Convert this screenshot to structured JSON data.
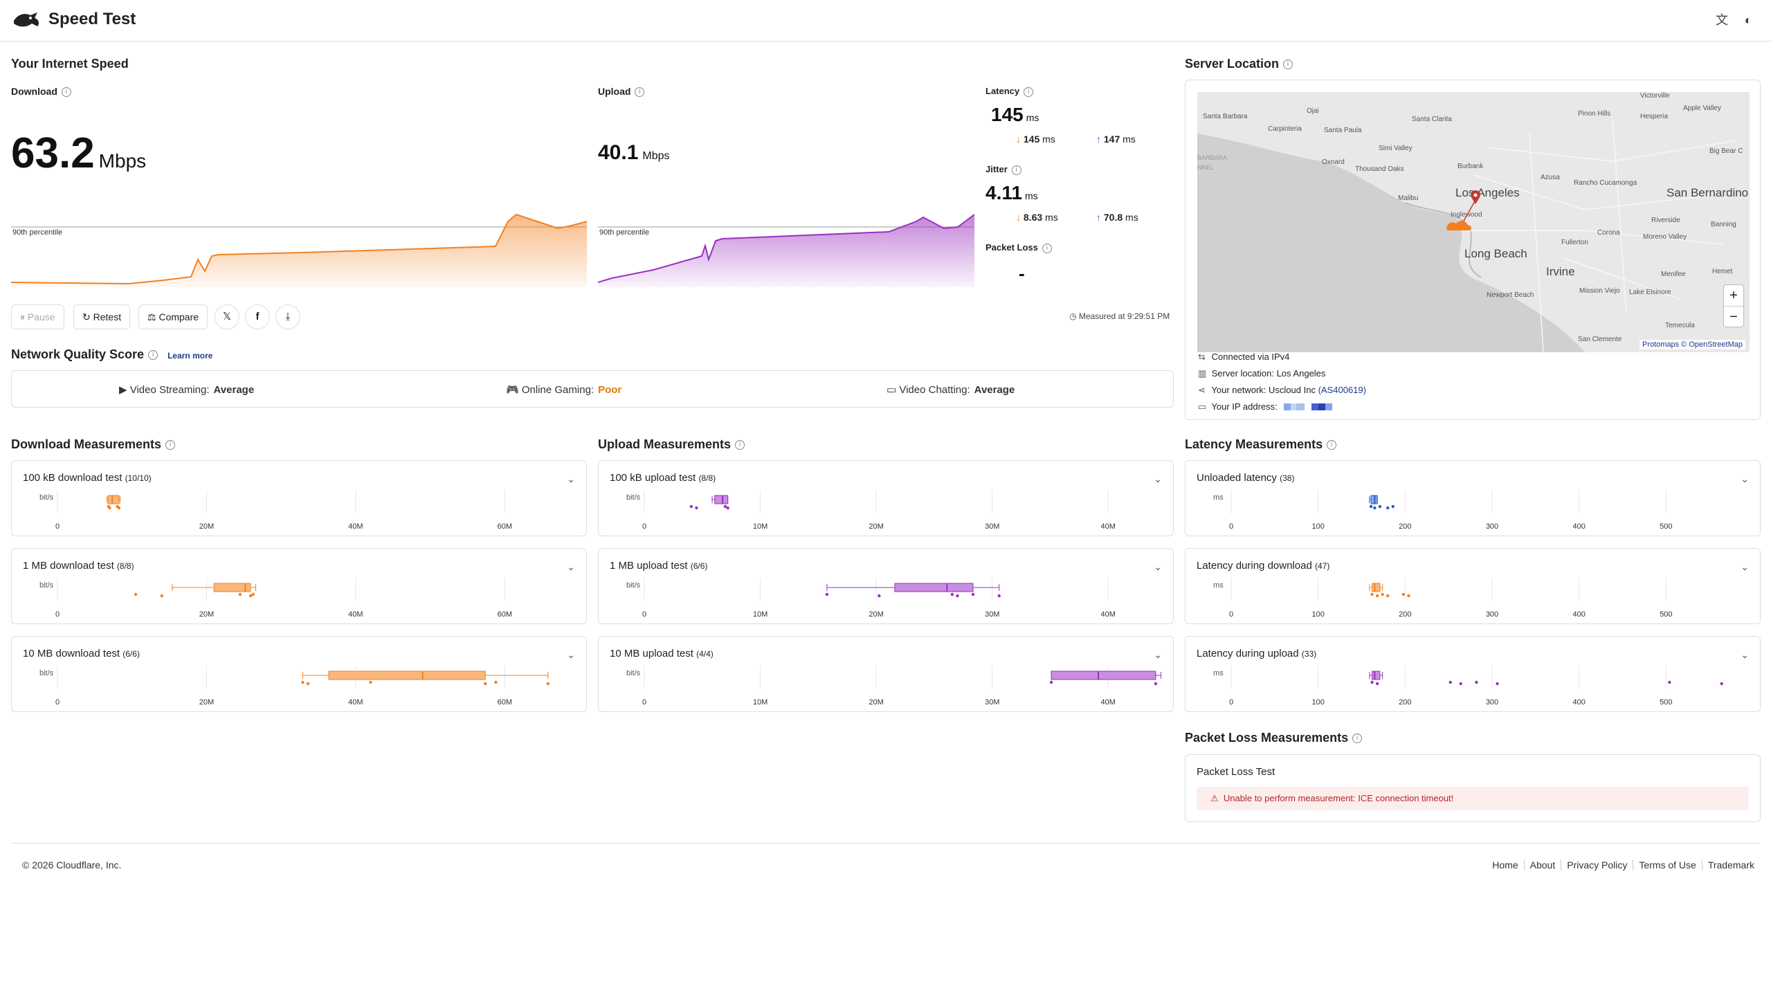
{
  "header": {
    "title": "Speed Test",
    "icons": [
      "translate-icon",
      "theme-icon"
    ]
  },
  "speed": {
    "section_title": "Your Internet Speed",
    "download": {
      "label": "Download",
      "value": "63.2",
      "unit": "Mbps",
      "percentile_label": "90th percentile"
    },
    "upload": {
      "label": "Upload",
      "value": "40.1",
      "unit": "Mbps",
      "percentile_label": "90th percentile"
    },
    "latency": {
      "label": "Latency",
      "value": "145",
      "unit": "ms",
      "down": "145",
      "down_unit": "ms",
      "up": "147",
      "up_unit": "ms"
    },
    "jitter": {
      "label": "Jitter",
      "value": "4.11",
      "unit": "ms",
      "down": "8.63",
      "down_unit": "ms",
      "up": "70.8",
      "up_unit": "ms"
    },
    "packet_loss": {
      "label": "Packet Loss",
      "value": "-"
    }
  },
  "actions": {
    "pause": "Pause",
    "retest": "Retest",
    "compare": "Compare",
    "measured": "Measured at 9:29:51 PM"
  },
  "quality": {
    "title": "Network Quality Score",
    "learn_more": "Learn more",
    "streaming_label": "Video Streaming:",
    "streaming_value": "Average",
    "gaming_label": "Online Gaming:",
    "gaming_value": "Poor",
    "chatting_label": "Video Chatting:",
    "chatting_value": "Average"
  },
  "location": {
    "title": "Server Location",
    "connected_label": "Connected via",
    "connected_value": "IPv4",
    "server_label": "Server location:",
    "server_value": "Los Angeles",
    "network_label": "Your network:",
    "network_value": "Uscloud Inc",
    "network_asn": "(AS400619)",
    "ip_label": "Your IP address:",
    "map_attr": "Protomaps © OpenStreetMap",
    "places": [
      "Santa Barbara",
      "Ojai",
      "Carpinteria",
      "Santa Clarita",
      "Santa Paula",
      "Simi Valley",
      "Oxnard",
      "Thousand Oaks",
      "Burbank",
      "Malibu",
      "Los Angeles",
      "Inglewood",
      "Long Beach",
      "Irvine",
      "Fullerton",
      "Corona",
      "Riverside",
      "Moreno Valley",
      "Azusa",
      "Rancho Cucamonga",
      "San Bernardino",
      "Pinon Hills",
      "Hesperia",
      "Apple Valley",
      "Victorville",
      "Big Bear C",
      "Banning",
      "Hemet",
      "Menifee",
      "Lake Elsinore",
      "Mission Viejo",
      "Newport Beach",
      "San Clemente",
      "Temecula",
      "BARBARA",
      "NNEL"
    ]
  },
  "download_measurements": {
    "title": "Download Measurements",
    "unit": "bit/s",
    "ticks": [
      "0",
      "20M",
      "40M",
      "60M"
    ],
    "tests": [
      {
        "name": "100 kB download test",
        "count": "(10/10)"
      },
      {
        "name": "1 MB download test",
        "count": "(8/8)"
      },
      {
        "name": "10 MB download test",
        "count": "(6/6)"
      }
    ]
  },
  "upload_measurements": {
    "title": "Upload Measurements",
    "unit": "bit/s",
    "ticks": [
      "0",
      "10M",
      "20M",
      "30M",
      "40M"
    ],
    "tests": [
      {
        "name": "100 kB upload test",
        "count": "(8/8)"
      },
      {
        "name": "1 MB upload test",
        "count": "(6/6)"
      },
      {
        "name": "10 MB upload test",
        "count": "(4/4)"
      }
    ]
  },
  "latency_measurements": {
    "title": "Latency Measurements",
    "unit": "ms",
    "ticks": [
      "0",
      "100",
      "200",
      "300",
      "400",
      "500"
    ],
    "tests": [
      {
        "name": "Unloaded latency",
        "count": "(38)"
      },
      {
        "name": "Latency during download",
        "count": "(47)"
      },
      {
        "name": "Latency during upload",
        "count": "(33)"
      }
    ]
  },
  "packet_loss_measurements": {
    "title": "Packet Loss Measurements",
    "test": "Packet Loss Test",
    "error": "Unable to perform measurement: ICE connection timeout!"
  },
  "footer": {
    "copyright": "© 2026 Cloudflare, Inc.",
    "links": [
      "Home",
      "About",
      "Privacy Policy",
      "Terms of Use",
      "Trademark"
    ]
  },
  "colors": {
    "download": "#f38020",
    "upload": "#9b2fbf",
    "latency": "#1f5fc9",
    "poor": "#e07b00",
    "error": "#b3261e"
  }
}
